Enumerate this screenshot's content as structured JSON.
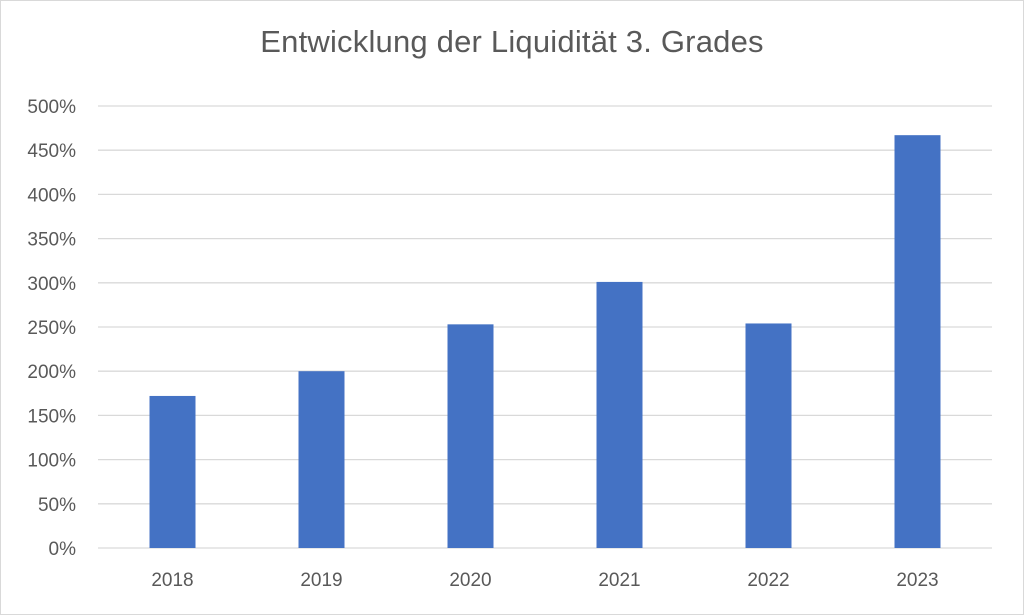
{
  "chart_data": {
    "type": "bar",
    "title": "Entwicklung der Liquidität 3. Grades",
    "xlabel": "",
    "ylabel": "",
    "categories": [
      "2018",
      "2019",
      "2020",
      "2021",
      "2022",
      "2023"
    ],
    "values": [
      172,
      200,
      253,
      301,
      254,
      467
    ],
    "unit": "%",
    "ylim": [
      0,
      500
    ],
    "yticks": [
      0,
      50,
      100,
      150,
      200,
      250,
      300,
      350,
      400,
      450,
      500
    ],
    "ytick_labels": [
      "0%",
      "50%",
      "100%",
      "150%",
      "200%",
      "250%",
      "300%",
      "350%",
      "400%",
      "450%",
      "500%"
    ],
    "grid": true,
    "legend": "none",
    "colors": {
      "bar": "#4472c4",
      "grid": "#d9d9d9",
      "text": "#595959"
    }
  }
}
